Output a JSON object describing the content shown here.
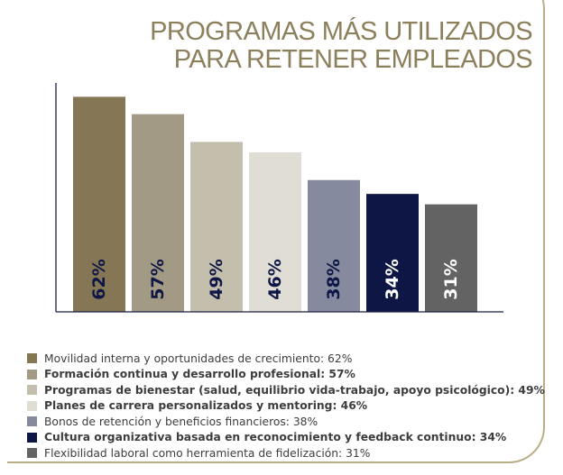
{
  "title": {
    "line1": "PROGRAMAS MÁS UTILIZADOS",
    "line2": "PARA RETENER EMPLEADOS"
  },
  "colors": {
    "title": "#8c7f5b",
    "axis": "#1c2040",
    "frame": "#b9ad86"
  },
  "chart_data": {
    "type": "bar",
    "title": "PROGRAMAS MÁS UTILIZADOS PARA RETENER EMPLEADOS",
    "categories": [
      "Movilidad interna y oportunidades de crecimiento",
      "Formación continua y desarrollo profesional",
      "Programas de bienestar (salud, equilibrio vida-trabajo, apoyo psicológico)",
      "Planes de carrera personalizados y mentoring",
      "Bonos de retención y beneficios financieros",
      "Cultura organizativa basada en reconocimiento y feedback continuo",
      "Flexibilidad laboral como herramienta de fidelización"
    ],
    "values": [
      62,
      57,
      49,
      46,
      38,
      34,
      31
    ],
    "labels": [
      "62%",
      "57%",
      "49%",
      "46%",
      "38%",
      "34%",
      "31%"
    ],
    "colors": [
      "#857756",
      "#a29a84",
      "#c4bfad",
      "#e0ddd5",
      "#858a9f",
      "#0e1645",
      "#636363"
    ],
    "label_colors": [
      "#0e1645",
      "#0e1645",
      "#0e1645",
      "#0e1645",
      "#0e1645",
      "#ffffff",
      "#ffffff"
    ],
    "ylim": [
      0,
      66
    ],
    "xlabel": "",
    "ylabel": "",
    "grid": false,
    "legend_position": "bottom"
  },
  "legend": [
    {
      "text": "Movilidad interna y oportunidades de crecimiento: 62%",
      "color": "#857756",
      "bold": false
    },
    {
      "text": "Formación continua y desarrollo profesional: 57%",
      "color": "#a29a84",
      "bold": true
    },
    {
      "text": "Programas de bienestar (salud, equilibrio vida-trabajo, apoyo psicológico): 49%",
      "color": "#c4bfad",
      "bold": true
    },
    {
      "text": "Planes de carrera personalizados y mentoring: 46%",
      "color": "#e0ddd5",
      "bold": true
    },
    {
      "text": "Bonos de retención y beneficios financieros: 38%",
      "color": "#858a9f",
      "bold": false
    },
    {
      "text": "Cultura organizativa basada en reconocimiento y feedback continuo: 34%",
      "color": "#0e1645",
      "bold": true
    },
    {
      "text": "Flexibilidad laboral como herramienta de fidelización: 31%",
      "color": "#636363",
      "bold": false
    }
  ]
}
